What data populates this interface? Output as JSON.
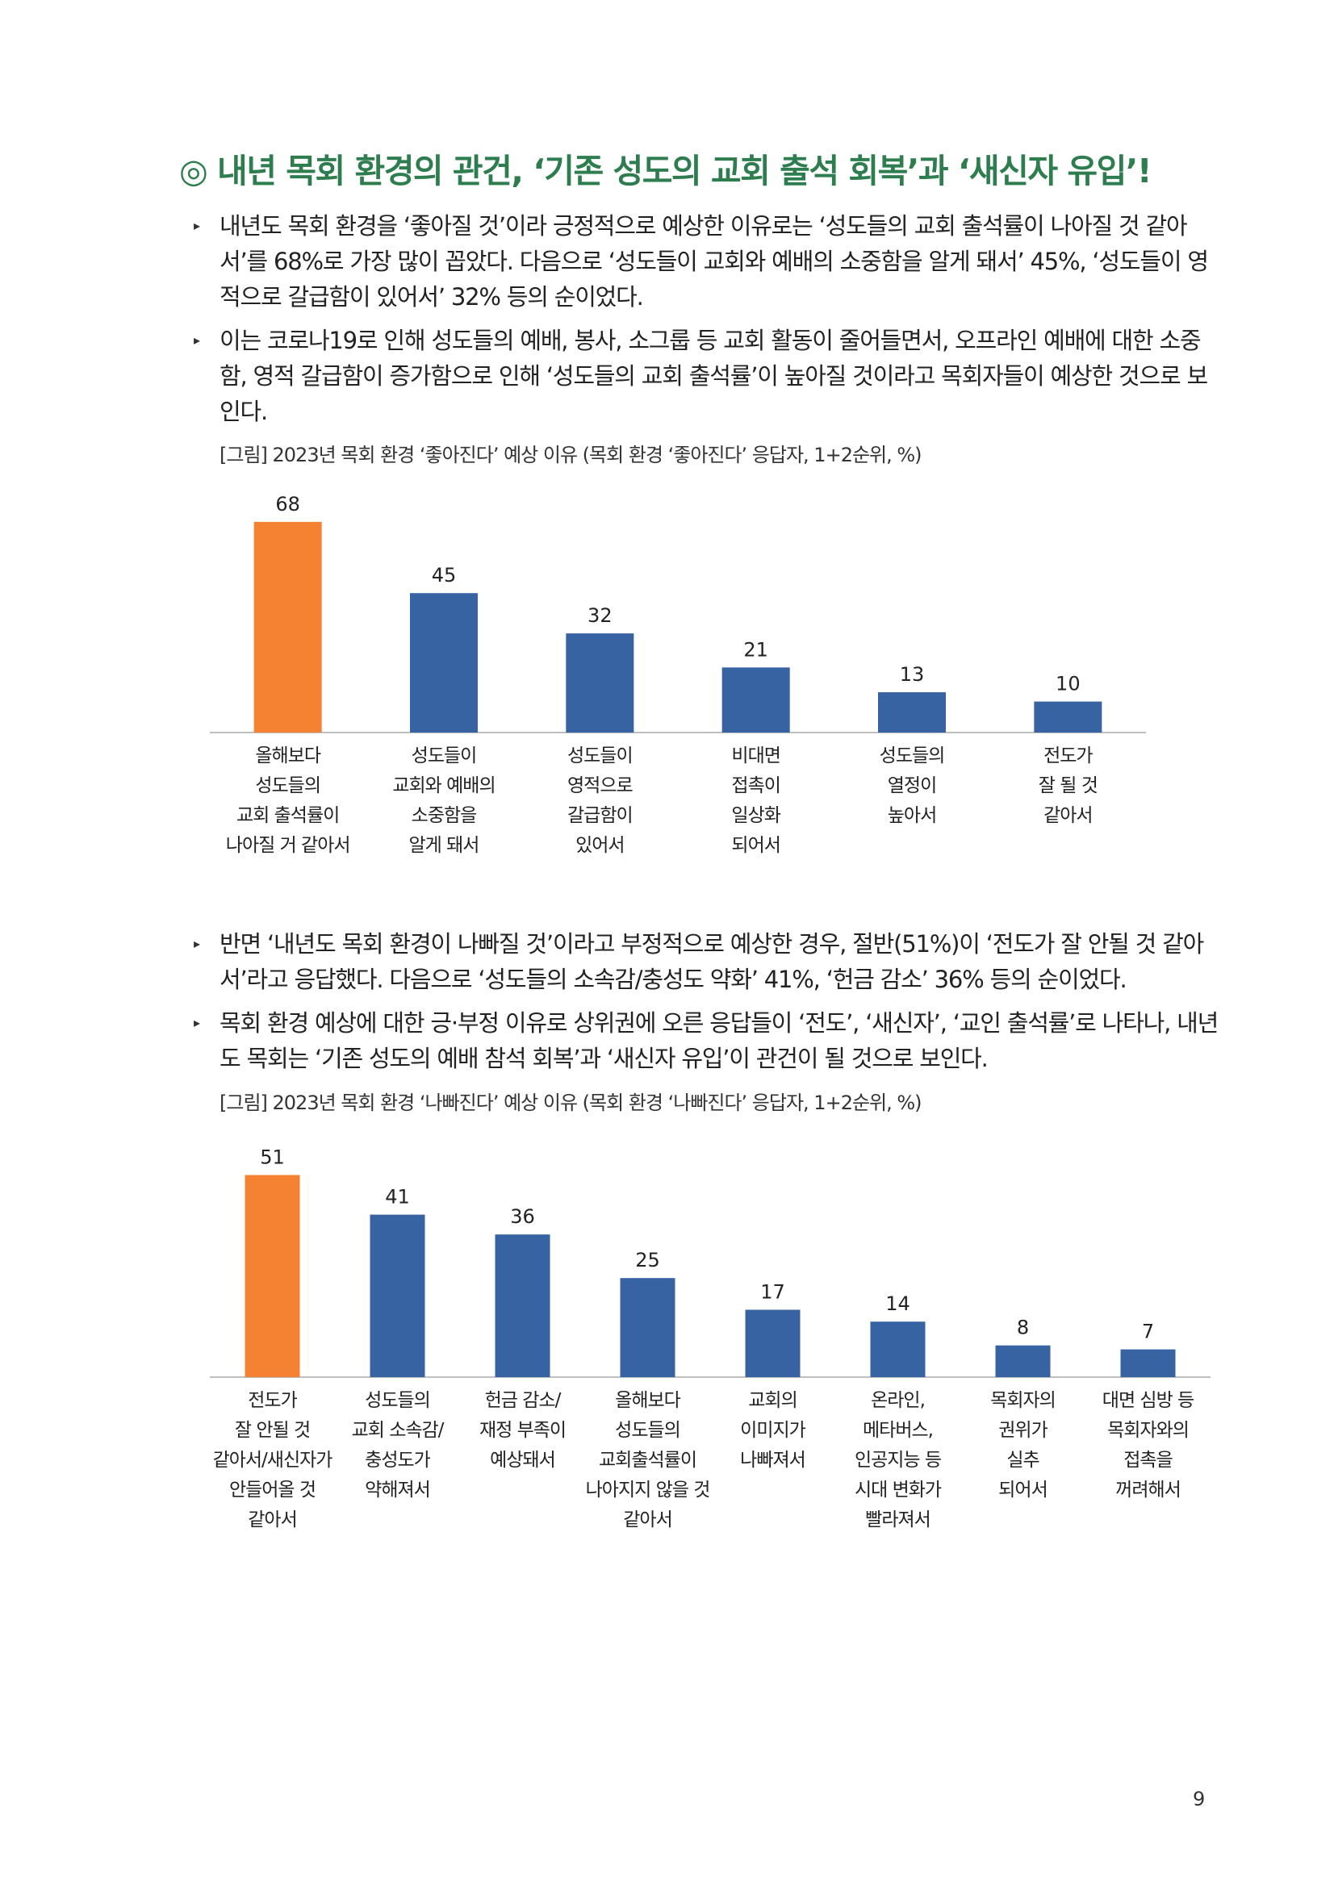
{
  "heading": "◎ 내년 목회 환경의 관건, ‘기존 성도의 교회 출석 회복’과 ‘새신자 유입’!",
  "section1": {
    "bullets": [
      "내년도 목회 환경을 ‘좋아질 것’이라 긍정적으로 예상한 이유로는 ‘성도들의 교회 출석률이 나아질 것 같아서’를 68%로 가장 많이 꼽았다. 다음으로 ‘성도들이 교회와 예배의 소중함을 알게 돼서’ 45%, ‘성도들이 영적으로 갈급함이 있어서’ 32% 등의 순이었다.",
      "이는 코로나19로 인해 성도들의 예배, 봉사, 소그룹 등 교회 활동이 줄어들면서, 오프라인 예배에 대한 소중함, 영적 갈급함이 증가함으로 인해 ‘성도들의 교회 출석률’이 높아질 것이라고 목회자들이 예상한 것으로 보인다."
    ],
    "caption": "[그림] 2023년 목회 환경 ‘좋아진다’ 예상 이유 (목회 환경 ‘좋아진다’ 응답자, 1+2순위, %)"
  },
  "section2": {
    "bullets": [
      "반면 ‘내년도 목회 환경이 나빠질 것’이라고 부정적으로 예상한 경우, 절반(51%)이 ‘전도가 잘 안될 것 같아서’라고 응답했다. 다음으로 ‘성도들의 소속감/충성도 약화’ 41%, ‘헌금 감소’ 36% 등의 순이었다.",
      "목회 환경 예상에 대한 긍·부정 이유로 상위권에 오른 응답들이 ‘전도’, ‘새신자’, ‘교인 출석률’로 나타나, 내년도 목회는 ‘기존 성도의 예배 참석 회복’과 ‘새신자 유입’이 관건이 될 것으로 보인다."
    ],
    "caption": "[그림] 2023년 목회 환경 ‘나빠진다’ 예상 이유 (목회 환경 ‘나빠진다’ 응답자, 1+2순위, %)"
  },
  "page_number": "9",
  "colors": {
    "highlight": "#f58233",
    "bar": "#3763a3",
    "heading": "#2e7d4f"
  },
  "chart_data": [
    {
      "type": "bar",
      "title": "",
      "categories": [
        [
          "올해보다",
          "성도들의",
          "교회 출석률이",
          "나아질 거 같아서"
        ],
        [
          "성도들이",
          "교회와 예배의",
          "소중함을",
          "알게 돼서"
        ],
        [
          "성도들이",
          "영적으로",
          "갈급함이",
          "있어서"
        ],
        [
          "비대면",
          "접촉이",
          "일상화",
          "되어서"
        ],
        [
          "성도들의",
          "열정이",
          "높아서"
        ],
        [
          "전도가",
          "잘 될 것",
          "같아서"
        ]
      ],
      "values": [
        68,
        45,
        32,
        21,
        13,
        10
      ],
      "highlight_index": 0,
      "ylim": [
        0,
        75
      ],
      "grid": false
    },
    {
      "type": "bar",
      "title": "",
      "categories": [
        [
          "전도가",
          "잘 안될 것",
          "같아서/새신자가",
          "안들어올 것",
          "같아서"
        ],
        [
          "성도들의",
          "교회 소속감/",
          "충성도가",
          "약해져서"
        ],
        [
          "헌금 감소/",
          "재정 부족이",
          "예상돼서"
        ],
        [
          "올해보다",
          "성도들의",
          "교회출석률이",
          "나아지지 않을 것",
          "같아서"
        ],
        [
          "교회의",
          "이미지가",
          "나빠져서"
        ],
        [
          "온라인,",
          "메타버스,",
          "인공지능 등",
          "시대 변화가",
          "빨라져서"
        ],
        [
          "목회자의",
          "권위가",
          "실추",
          "되어서"
        ],
        [
          "대면 심방 등",
          "목회자와의",
          "접촉을",
          "꺼려해서"
        ]
      ],
      "values": [
        51,
        41,
        36,
        25,
        17,
        14,
        8,
        7
      ],
      "highlight_index": 0,
      "ylim": [
        0,
        57
      ],
      "grid": false
    }
  ]
}
